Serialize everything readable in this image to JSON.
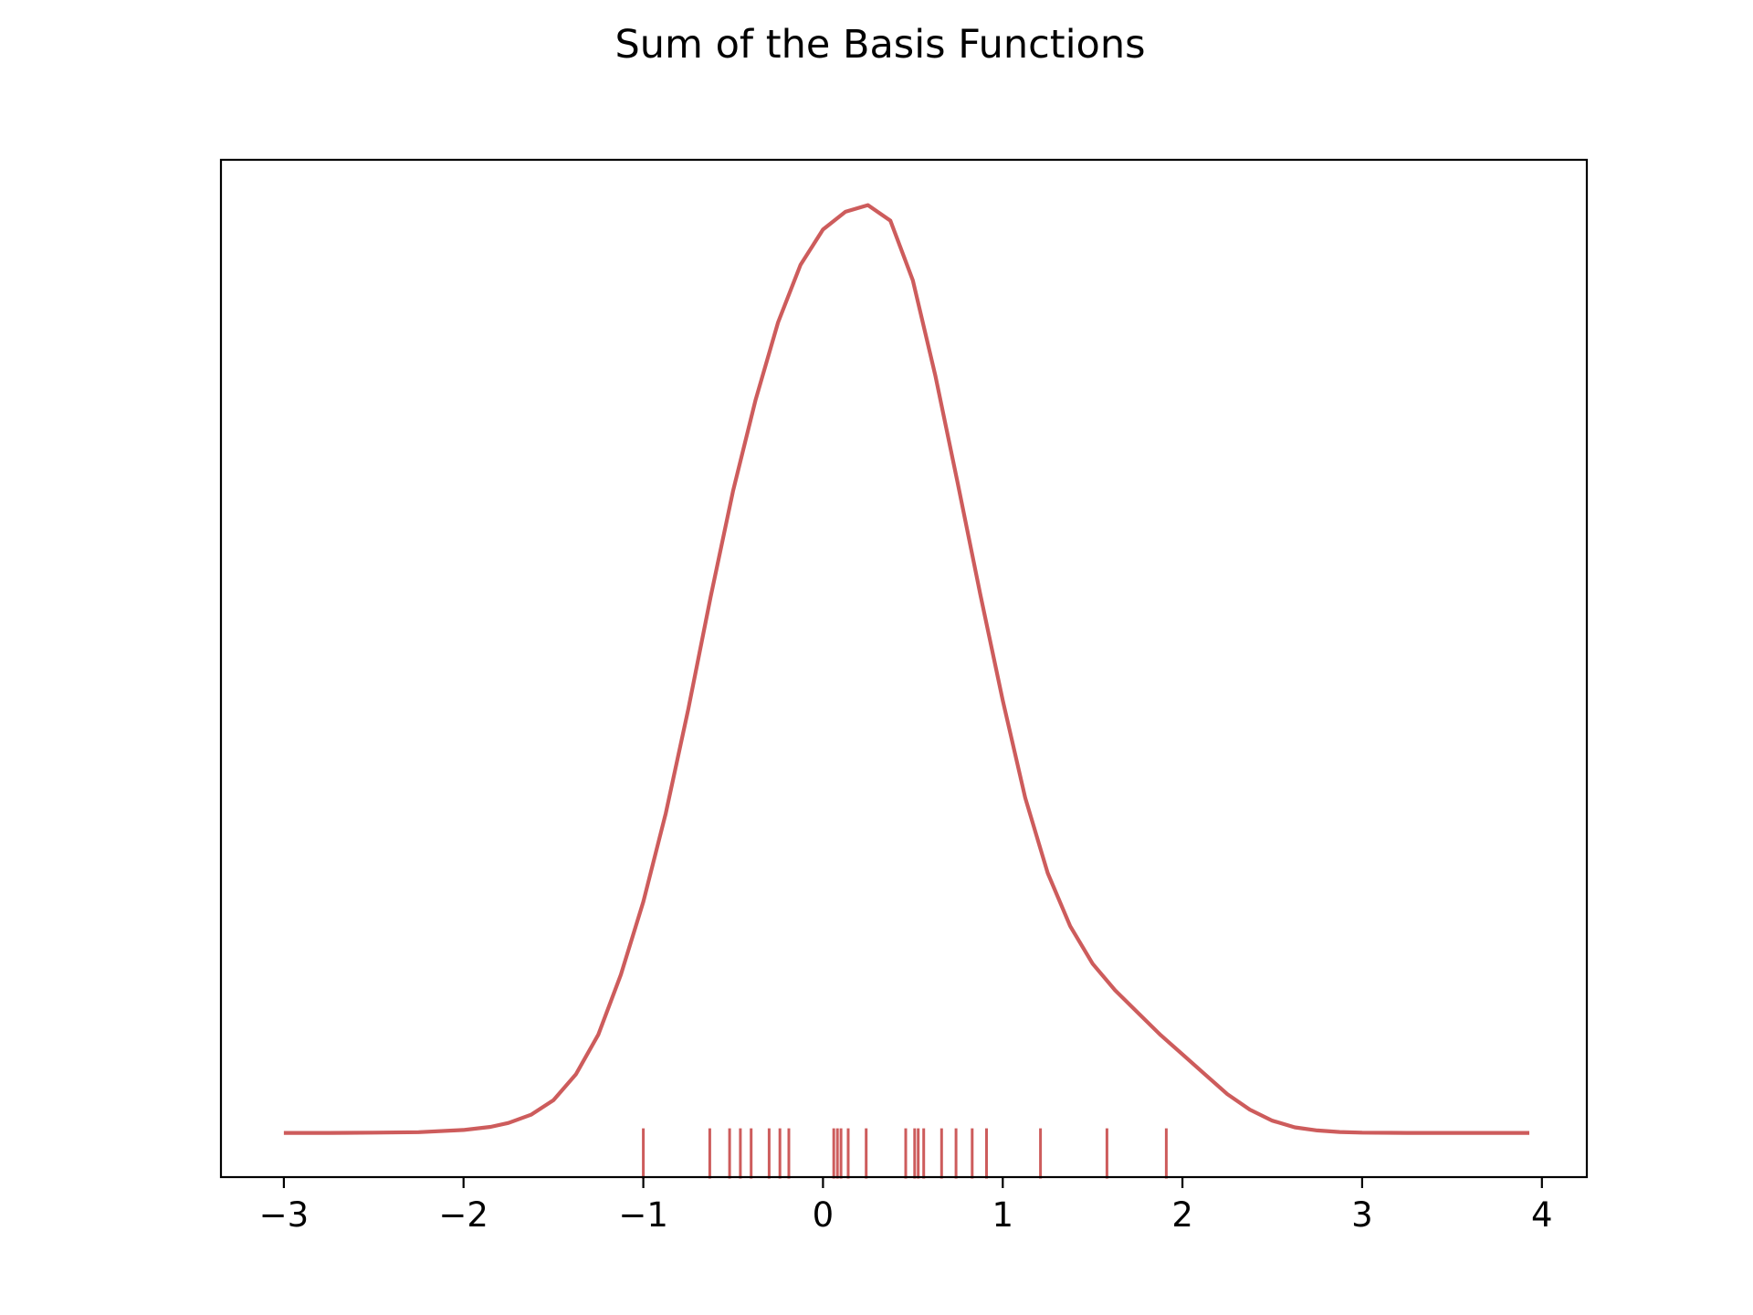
{
  "chart_data": {
    "type": "line",
    "title": "Sum of the Basis Functions",
    "xlabel": "",
    "ylabel": "",
    "xlim": [
      -3.35,
      4.25
    ],
    "ylim": [
      -0.02,
      0.44
    ],
    "x_ticks": [
      -3,
      -2,
      -1,
      0,
      1,
      2,
      3,
      4
    ],
    "x_tick_labels": [
      "−3",
      "−2",
      "−1",
      "0",
      "1",
      "2",
      "3",
      "4"
    ],
    "y_ticks_visible": false,
    "grid": false,
    "legend": "none",
    "color": "#cd5c5c",
    "series": [
      {
        "x": [
          -3.0,
          -2.75,
          -2.5,
          -2.25,
          -2.0,
          -1.85,
          -1.75,
          -1.625,
          -1.5,
          -1.375,
          -1.25,
          -1.125,
          -1.0,
          -0.875,
          -0.75,
          -0.625,
          -0.5,
          -0.375,
          -0.25,
          -0.125,
          0.0,
          0.125,
          0.25,
          0.375,
          0.5,
          0.625,
          0.75,
          0.875,
          1.0,
          1.125,
          1.25,
          1.375,
          1.5,
          1.625,
          1.75,
          1.875,
          2.0,
          2.125,
          2.25,
          2.375,
          2.5,
          2.625,
          2.75,
          2.875,
          3.0,
          3.25,
          3.5,
          3.75,
          3.93
        ],
        "values": [
          0.0,
          0.0,
          0.0001,
          0.0003,
          0.0013,
          0.0027,
          0.0045,
          0.0082,
          0.0148,
          0.0265,
          0.0445,
          0.0715,
          0.1045,
          0.1445,
          0.1915,
          0.2425,
          0.2905,
          0.3315,
          0.3665,
          0.3925,
          0.4085,
          0.4165,
          0.4195,
          0.4125,
          0.3855,
          0.3425,
          0.2935,
          0.2435,
          0.1955,
          0.1515,
          0.1175,
          0.0935,
          0.0765,
          0.0645,
          0.0545,
          0.0445,
          0.0355,
          0.0265,
          0.0175,
          0.0105,
          0.0055,
          0.0025,
          0.0011,
          0.0004,
          0.0001,
          0.0,
          0.0,
          0.0,
          0.0
        ]
      }
    ],
    "rug": [
      -1.0,
      -0.63,
      -0.52,
      -0.46,
      -0.4,
      -0.3,
      -0.24,
      -0.19,
      0.06,
      0.08,
      0.1,
      0.14,
      0.24,
      0.46,
      0.51,
      0.53,
      0.56,
      0.66,
      0.74,
      0.83,
      0.91,
      1.21,
      1.58,
      1.91
    ]
  }
}
